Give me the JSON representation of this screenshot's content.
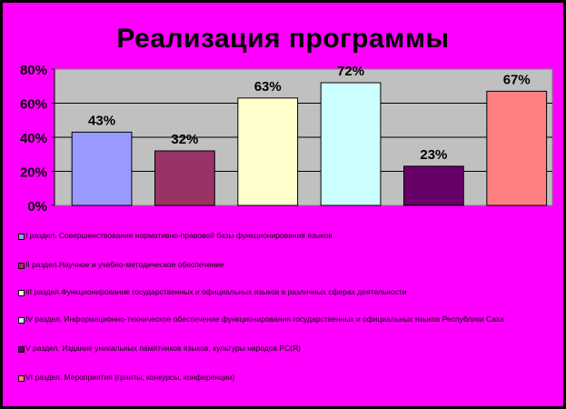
{
  "chart_data": {
    "type": "bar",
    "title": "Реализация программы",
    "ylim": [
      0,
      80
    ],
    "yticks": [
      "0%",
      "20%",
      "40%",
      "60%",
      "80%"
    ],
    "grid": true,
    "legend_position": "bottom",
    "series": [
      {
        "name": "I раздел. Совершенствование нормативно-правовой базы функционирования языков",
        "value": 43,
        "label": "43%",
        "color": "#9999ff"
      },
      {
        "name": "II раздел.Научное и учебно-методическое обеспечение",
        "value": 32,
        "label": "32%",
        "color": "#993366"
      },
      {
        "name": "III раздел.Функционирование государственных и официальных языков в различных сферах деятельности",
        "value": 63,
        "label": "63%",
        "color": "#ffffcc"
      },
      {
        "name": "IV раздел. Информационно-техническое обеспечение функционирования государственных и официальных языков Республики Саха",
        "value": 72,
        "label": "72%",
        "color": "#ccffff"
      },
      {
        "name": "V раздел. Издание уникальных памятников языков, культуры народов РС(Я)",
        "value": 23,
        "label": "23%",
        "color": "#660066"
      },
      {
        "name": "VI раздел. Мероприятия (гранты, конкурсы, конференции)",
        "value": 67,
        "label": "67%",
        "color": "#ff8080"
      }
    ]
  }
}
